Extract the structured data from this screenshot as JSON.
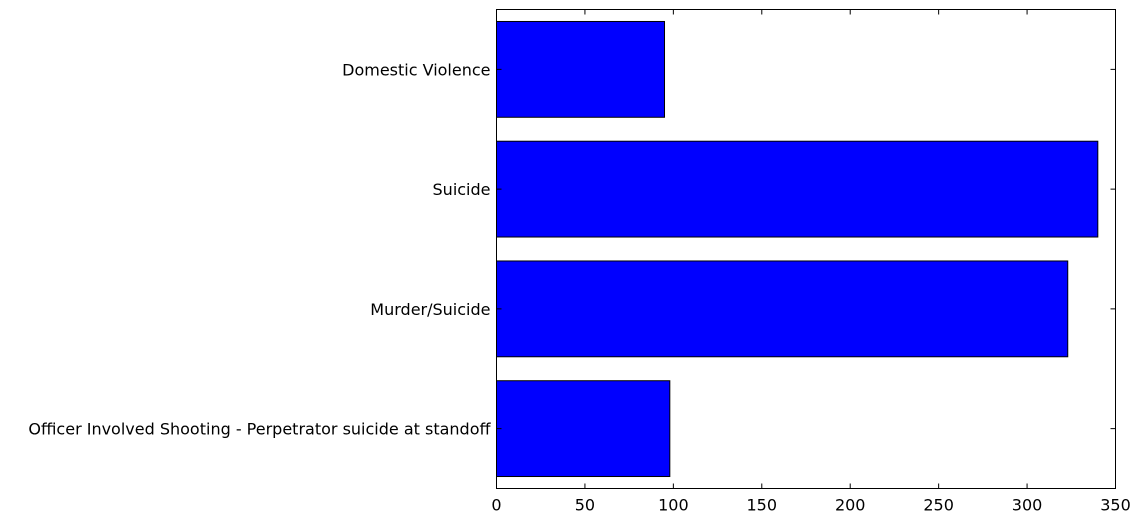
{
  "chart_data": {
    "type": "bar",
    "orientation": "horizontal",
    "categories": [
      "Domestic Violence",
      "Suicide",
      "Murder/Suicide",
      "Officer Involved Shooting - Perpetrator suicide at standoff"
    ],
    "values": [
      95,
      340,
      323,
      98
    ],
    "xlim": [
      0,
      350
    ],
    "xticks": [
      0,
      50,
      100,
      150,
      200,
      250,
      300,
      350
    ],
    "title": "",
    "xlabel": "",
    "ylabel": "",
    "grid": false,
    "bar_color": "#0000ff",
    "edge_color": "#000000"
  }
}
